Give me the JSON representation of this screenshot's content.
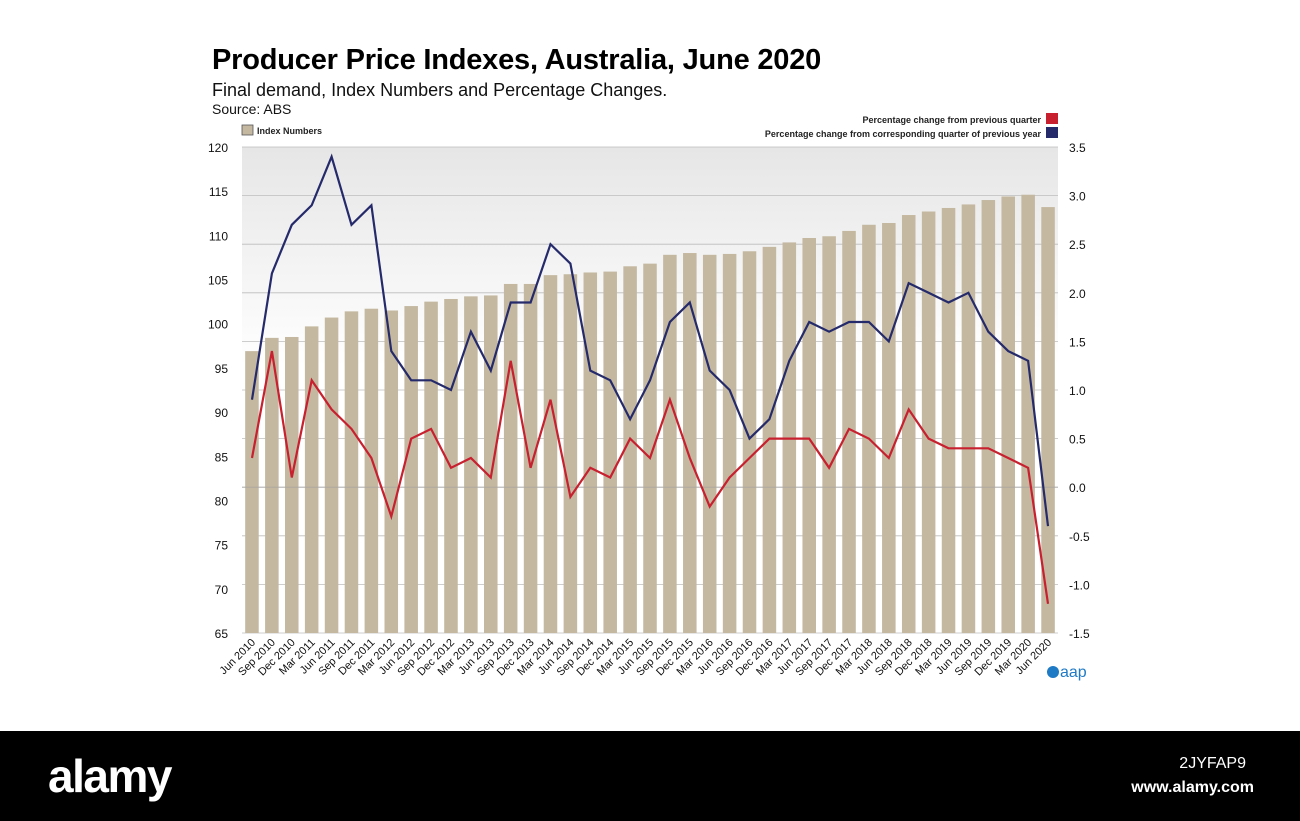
{
  "header": {
    "title": "Producer Price Indexes, Australia, June 2020",
    "subtitle": "Final demand, Index Numbers and Percentage Changes.",
    "source": "Source: ABS"
  },
  "branding": {
    "aap_logo_text": "aap",
    "footer_logo": "alamy",
    "image_id": "2JYFAP9",
    "footer_url": "www.alamy.com"
  },
  "colors": {
    "bars": "#c4b8a0",
    "red_line": "#c8202f",
    "blue_line": "#252a6b",
    "aap": "#1f7ac6"
  },
  "chart_data": {
    "type": "bar",
    "categories": [
      "Jun 2010",
      "Sep 2010",
      "Dec 2010",
      "Mar 2011",
      "Jun 2011",
      "Sep 2011",
      "Dec 2011",
      "Mar 2012",
      "Jun 2012",
      "Sep 2012",
      "Dec 2012",
      "Mar 2013",
      "Jun 2013",
      "Sep 2013",
      "Dec 2013",
      "Mar 2014",
      "Jun 2014",
      "Sep 2014",
      "Dec 2014",
      "Mar 2015",
      "Jun 2015",
      "Sep 2015",
      "Dec 2015",
      "Mar 2016",
      "Jun 2016",
      "Sep 2016",
      "Dec 2016",
      "Mar 2017",
      "Jun 2017",
      "Sep 2017",
      "Dec 2017",
      "Mar 2018",
      "Jun 2018",
      "Sep 2018",
      "Dec 2018",
      "Mar 2019",
      "Jun 2019",
      "Sep 2019",
      "Dec 2019",
      "Mar 2020",
      "Jun 2020"
    ],
    "bar_series": {
      "name": "Index Numbers",
      "values": [
        96.9,
        98.4,
        98.5,
        99.7,
        100.7,
        101.4,
        101.7,
        101.5,
        102.0,
        102.5,
        102.8,
        103.1,
        103.2,
        104.5,
        104.5,
        105.5,
        105.6,
        105.8,
        105.9,
        106.5,
        106.8,
        107.8,
        108.0,
        107.8,
        107.9,
        108.2,
        108.7,
        109.2,
        109.7,
        109.9,
        110.5,
        111.2,
        111.4,
        112.3,
        112.7,
        113.1,
        113.5,
        114.0,
        114.4,
        114.6,
        113.2
      ]
    },
    "line_series": [
      {
        "name": "Percentage change from previous quarter",
        "values": [
          0.3,
          1.4,
          0.1,
          1.1,
          0.8,
          0.6,
          0.3,
          -0.3,
          0.5,
          0.6,
          0.2,
          0.3,
          0.1,
          1.3,
          0.2,
          0.9,
          -0.1,
          0.2,
          0.1,
          0.5,
          0.3,
          0.9,
          0.3,
          -0.2,
          0.1,
          0.3,
          0.5,
          0.5,
          0.5,
          0.2,
          0.6,
          0.5,
          0.3,
          0.8,
          0.5,
          0.4,
          0.4,
          0.4,
          0.3,
          0.2,
          -1.2
        ]
      },
      {
        "name": "Percentage change from corresponding quarter of previous year",
        "values": [
          0.9,
          2.2,
          2.7,
          2.9,
          3.4,
          2.7,
          2.9,
          1.4,
          1.1,
          1.1,
          1.0,
          1.6,
          1.2,
          1.9,
          1.9,
          2.5,
          2.3,
          1.2,
          1.1,
          0.7,
          1.1,
          1.7,
          1.9,
          1.2,
          1.0,
          0.5,
          0.7,
          1.3,
          1.7,
          1.6,
          1.7,
          1.7,
          1.5,
          2.1,
          2.0,
          1.9,
          2.0,
          1.6,
          1.4,
          1.3,
          -0.4
        ]
      }
    ],
    "y_left": {
      "min": 65,
      "max": 120,
      "ticks": [
        65,
        70,
        75,
        80,
        85,
        90,
        95,
        100,
        105,
        110,
        115,
        120
      ]
    },
    "y_right": {
      "min": -1.5,
      "max": 3.5,
      "ticks": [
        "-1.5",
        "-1.0",
        "-0.5",
        "0.0",
        "0.5",
        "1.0",
        "1.5",
        "2.0",
        "2.5",
        "3.0",
        "3.5"
      ]
    },
    "legend": {
      "bars_label": "Index Numbers",
      "bars_position": "top-left",
      "lines_position": "top-right"
    }
  }
}
